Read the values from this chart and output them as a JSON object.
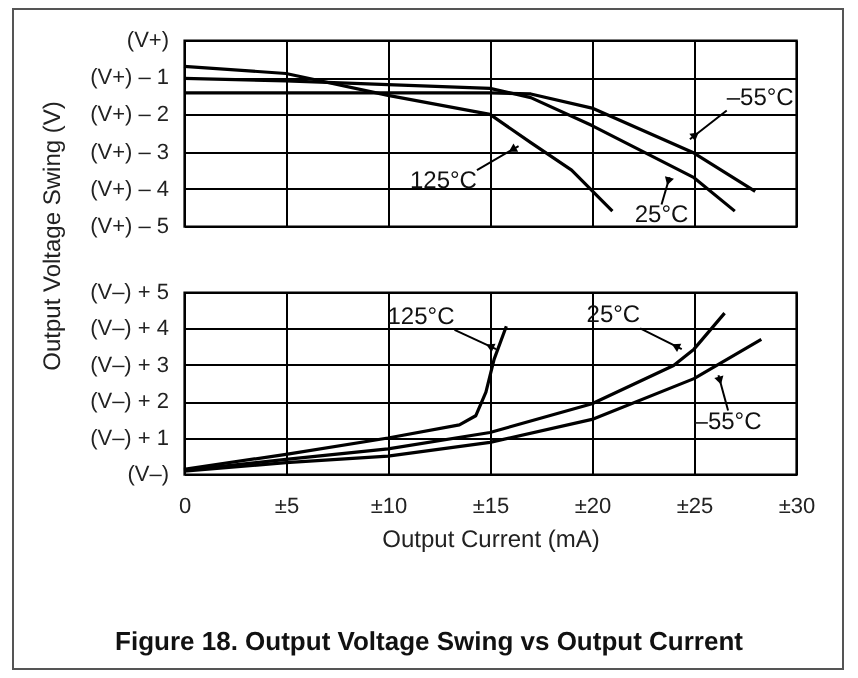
{
  "chart_data": [
    {
      "type": "line",
      "title": "Figure 18. Output Voltage Swing vs Output Current",
      "ylabel": "Output Voltage Swing (V)",
      "xlim": [
        0,
        30
      ],
      "xticks": [
        0,
        5,
        10,
        15,
        20,
        25,
        30
      ],
      "ylim": [
        -5,
        0
      ],
      "yticks": [
        {
          "value": 0,
          "label": "(V+)"
        },
        {
          "value": -1,
          "label": "(V+) – 1"
        },
        {
          "value": -2,
          "label": "(V+) – 2"
        },
        {
          "value": -3,
          "label": "(V+) – 3"
        },
        {
          "value": -4,
          "label": "(V+) – 4"
        },
        {
          "value": -5,
          "label": "(V+) – 5"
        }
      ],
      "grid": true,
      "tick_labels": "y",
      "series": [
        {
          "color": "#000000",
          "x": [
            0,
            5,
            10,
            15,
            17,
            19,
            21
          ],
          "values": [
            -0.71,
            -0.9,
            -1.49,
            -2.0,
            -2.76,
            -3.5,
            -4.6
          ]
        },
        {
          "color": "#000000",
          "x": [
            0,
            5,
            10,
            15,
            17,
            20,
            25,
            27
          ],
          "values": [
            -1.03,
            -1.1,
            -1.2,
            -1.3,
            -1.55,
            -2.3,
            -3.7,
            -4.6
          ]
        },
        {
          "color": "#000000",
          "x": [
            0,
            5,
            10,
            15,
            17,
            20,
            25,
            28
          ],
          "values": [
            -1.42,
            -1.42,
            -1.42,
            -1.42,
            -1.45,
            -1.83,
            -3.04,
            -4.07
          ]
        }
      ],
      "annotations": [
        {
          "text": "125°C",
          "x": 16.4,
          "y": -2.85
        },
        {
          "text": "25°C",
          "x": 23.8,
          "y": -3.69
        },
        {
          "text": "–55°C",
          "x": 24.8,
          "y": -2.67
        }
      ]
    },
    {
      "type": "line",
      "xlabel": "Output Current (mA)",
      "xlim": [
        0,
        30
      ],
      "xticks": [
        0,
        {
          "value": 5,
          "label": "±5"
        },
        {
          "value": 10,
          "label": "±10"
        },
        {
          "value": 15,
          "label": "±15"
        },
        {
          "value": 20,
          "label": "±20"
        },
        {
          "value": 25,
          "label": "±25"
        },
        {
          "value": 30,
          "label": "±30"
        }
      ],
      "ylim": [
        0,
        5
      ],
      "yticks": [
        {
          "value": 0,
          "label": "(V–)"
        },
        {
          "value": 1,
          "label": "(V–) + 1"
        },
        {
          "value": 2,
          "label": "(V–) + 2"
        },
        {
          "value": 3,
          "label": "(V–) + 3"
        },
        {
          "value": 4,
          "label": "(V–) + 4"
        },
        {
          "value": 5,
          "label": "(V–) + 5"
        }
      ],
      "grid": true,
      "series": [
        {
          "color": "#000000",
          "x": [
            0,
            5,
            10,
            13.5,
            14.3,
            14.8,
            15.2,
            15.8
          ],
          "values": [
            0.13,
            0.54,
            0.99,
            1.35,
            1.6,
            2.25,
            3.15,
            4.06
          ]
        },
        {
          "color": "#000000",
          "x": [
            0,
            5,
            10,
            15,
            20,
            24,
            25,
            26.5
          ],
          "values": [
            0.1,
            0.4,
            0.69,
            1.14,
            1.93,
            2.98,
            3.43,
            4.42
          ]
        },
        {
          "color": "#000000",
          "x": [
            0,
            5,
            10,
            15,
            20,
            25,
            28.3
          ],
          "values": [
            0.08,
            0.31,
            0.49,
            0.87,
            1.5,
            2.62,
            3.7
          ]
        }
      ],
      "annotations": [
        {
          "text": "125°C",
          "x": 15.3,
          "y": 3.43
        },
        {
          "text": "25°C",
          "x": 24.4,
          "y": 3.43
        },
        {
          "text": "–55°C",
          "x": 26.2,
          "y": 2.71
        }
      ]
    }
  ]
}
